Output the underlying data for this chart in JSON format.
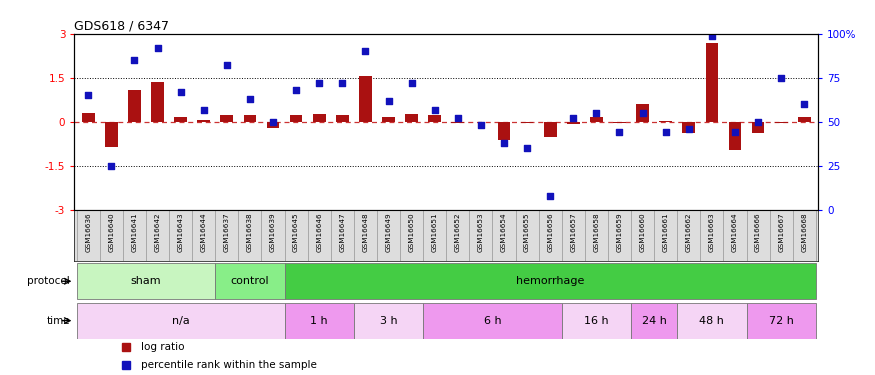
{
  "title": "GDS618 / 6347",
  "samples": [
    "GSM16636",
    "GSM16640",
    "GSM16641",
    "GSM16642",
    "GSM16643",
    "GSM16644",
    "GSM16637",
    "GSM16638",
    "GSM16639",
    "GSM16645",
    "GSM16646",
    "GSM16647",
    "GSM16648",
    "GSM16649",
    "GSM16650",
    "GSM16651",
    "GSM16652",
    "GSM16653",
    "GSM16654",
    "GSM16655",
    "GSM16656",
    "GSM16657",
    "GSM16658",
    "GSM16659",
    "GSM16660",
    "GSM16661",
    "GSM16662",
    "GSM16663",
    "GSM16664",
    "GSM16666",
    "GSM16667",
    "GSM16668"
  ],
  "log_ratio": [
    0.3,
    -0.85,
    1.1,
    1.35,
    0.18,
    0.08,
    0.22,
    0.25,
    -0.22,
    0.25,
    0.28,
    0.22,
    1.55,
    0.15,
    0.28,
    0.22,
    -0.03,
    -0.02,
    -0.6,
    -0.04,
    -0.52,
    -0.06,
    0.15,
    -0.04,
    0.6,
    0.04,
    -0.38,
    2.7,
    -0.95,
    -0.38,
    -0.05,
    0.18
  ],
  "percentile": [
    65,
    25,
    85,
    92,
    67,
    57,
    82,
    63,
    50,
    68,
    72,
    72,
    90,
    62,
    72,
    57,
    52,
    48,
    38,
    35,
    8,
    52,
    55,
    44,
    55,
    44,
    46,
    99,
    44,
    50,
    75,
    60
  ],
  "bar_color": "#AA1111",
  "dot_color": "#1111BB",
  "protocol_groups": [
    {
      "label": "sham",
      "start": 0,
      "end": 5,
      "color": "#C8F5C0"
    },
    {
      "label": "control",
      "start": 6,
      "end": 8,
      "color": "#88EE88"
    },
    {
      "label": "hemorrhage",
      "start": 9,
      "end": 31,
      "color": "#44CC44"
    }
  ],
  "time_groups": [
    {
      "label": "n/a",
      "start": 0,
      "end": 8,
      "color": "#F5D5F5"
    },
    {
      "label": "1 h",
      "start": 9,
      "end": 11,
      "color": "#EE99EE"
    },
    {
      "label": "3 h",
      "start": 12,
      "end": 14,
      "color": "#F5D5F5"
    },
    {
      "label": "6 h",
      "start": 15,
      "end": 20,
      "color": "#EE99EE"
    },
    {
      "label": "16 h",
      "start": 21,
      "end": 23,
      "color": "#F5D5F5"
    },
    {
      "label": "24 h",
      "start": 24,
      "end": 25,
      "color": "#EE99EE"
    },
    {
      "label": "48 h",
      "start": 26,
      "end": 28,
      "color": "#F5D5F5"
    },
    {
      "label": "72 h",
      "start": 29,
      "end": 31,
      "color": "#EE99EE"
    }
  ]
}
